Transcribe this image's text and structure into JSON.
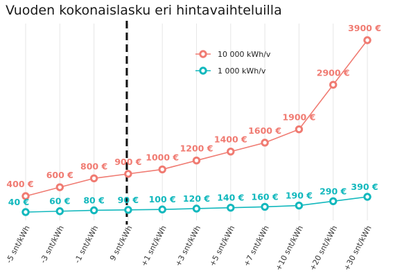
{
  "chart_data": {
    "type": "line",
    "title": "Vuoden kokonaislasku eri hintavaihteluilla",
    "xlabel": "",
    "ylabel": "",
    "categories": [
      "-5 snt/kWh",
      "-3 snt/kWh",
      "-1 snt/kWh",
      "9 snt/kWh",
      "+1 snt/kWh",
      "+3 snt/kWh",
      "+5 snt/kWh",
      "+7 snt/kWh",
      "+10 snt/kWh",
      "+20 snt/kWh",
      "+30 snt/kWh"
    ],
    "ylim": [
      0,
      4200
    ],
    "grid": "vertical",
    "legend": "top-right",
    "reference_line_category": "9 snt/kWh",
    "series": [
      {
        "name": "10 000 kWh/v",
        "color": "#f07b72",
        "values": [
          400,
          600,
          800,
          900,
          1000,
          1200,
          1400,
          1600,
          1900,
          2900,
          3900
        ],
        "labels": [
          "400 €",
          "600 €",
          "800 €",
          "900 €",
          "1000 €",
          "1200 €",
          "1400 €",
          "1600 €",
          "1900 €",
          "2900 €",
          "3900 €"
        ]
      },
      {
        "name": "1 000 kWh/v",
        "color": "#12b8bd",
        "values": [
          40,
          60,
          80,
          90,
          100,
          120,
          140,
          160,
          190,
          290,
          390
        ],
        "labels": [
          "40 €",
          "60 €",
          "80 €",
          "90 €",
          "100 €",
          "120 €",
          "140 €",
          "160 €",
          "190 €",
          "290 €",
          "390 €"
        ]
      }
    ]
  }
}
